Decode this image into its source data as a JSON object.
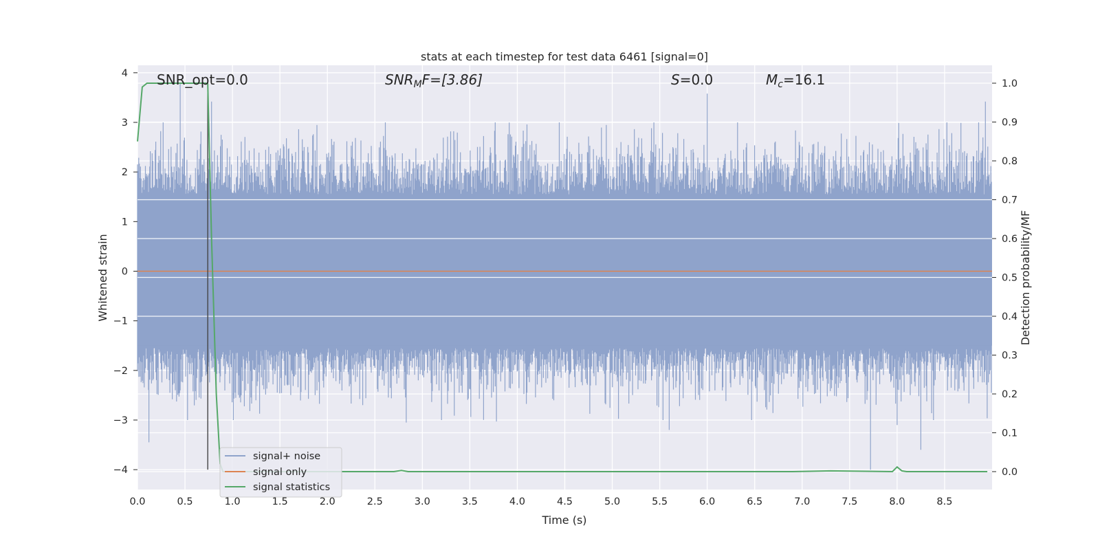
{
  "chart_data": {
    "type": "line",
    "title": "stats at each timestep for test data 6461 [signal=0]",
    "xlabel": "Time (s)",
    "ylabel": "Whitened strain",
    "y2label": "Detection probability/MF",
    "xlim": [
      0.0,
      9.0
    ],
    "ylim": [
      -4.4,
      4.15
    ],
    "y2lim": [
      -0.046,
      1.046
    ],
    "xticks": [
      "0.0",
      "0.5",
      "1.0",
      "1.5",
      "2.0",
      "2.5",
      "3.0",
      "3.5",
      "4.0",
      "4.5",
      "5.0",
      "5.5",
      "6.0",
      "6.5",
      "7.0",
      "7.5",
      "8.0",
      "8.5"
    ],
    "yticks": [
      "4",
      "3",
      "2",
      "1",
      "0",
      "−1",
      "−2",
      "−3",
      "−4"
    ],
    "y2ticks": [
      "1.0",
      "0.9",
      "0.8",
      "0.7",
      "0.6",
      "0.5",
      "0.4",
      "0.3",
      "0.2",
      "0.1",
      "0.0"
    ],
    "grid": true,
    "legend_position": "lower-left",
    "annotations": {
      "snr_opt": "SNR_opt=0.0",
      "snr_mf_main": "SNR",
      "snr_mf_sub": "M",
      "snr_mf_rest": "F=[3.86]",
      "s_main": "S",
      "s_rest": "=0.0",
      "mc_main": "M",
      "mc_sub": "c",
      "mc_rest": "=16.1"
    },
    "marker_line_x": 0.74,
    "series": [
      {
        "name": "signal+ noise",
        "color": "#8fa3cb",
        "envelope_max": 3.8,
        "envelope_min": -4.0,
        "outliers": [
          [
            0.12,
            -3.45
          ],
          [
            0.45,
            3.8
          ],
          [
            0.78,
            3.42
          ],
          [
            2.83,
            -3.05
          ],
          [
            3.78,
            -3.03
          ],
          [
            5.6,
            -3.2
          ],
          [
            6.0,
            3.58
          ],
          [
            7.72,
            -4.0
          ],
          [
            8.0,
            -3.1
          ],
          [
            8.25,
            -3.6
          ],
          [
            8.93,
            3.42
          ]
        ]
      },
      {
        "name": "signal only",
        "color": "#dd8452",
        "values_constant": 0.0
      },
      {
        "name": "signal statistics",
        "color": "#55a868",
        "axis": "right",
        "x": [
          0.0,
          0.05,
          0.1,
          0.72,
          0.74,
          0.78,
          0.83,
          0.87,
          0.9,
          2.7,
          2.78,
          2.85,
          6.9,
          7.3,
          7.95,
          8.0,
          8.05,
          8.1,
          8.95
        ],
        "values": [
          0.85,
          0.99,
          1.0,
          1.0,
          0.998,
          0.6,
          0.2,
          0.02,
          0.0,
          0.0,
          0.003,
          0.0,
          0.0,
          0.002,
          0.0,
          0.012,
          0.002,
          0.0,
          0.0
        ]
      }
    ]
  }
}
